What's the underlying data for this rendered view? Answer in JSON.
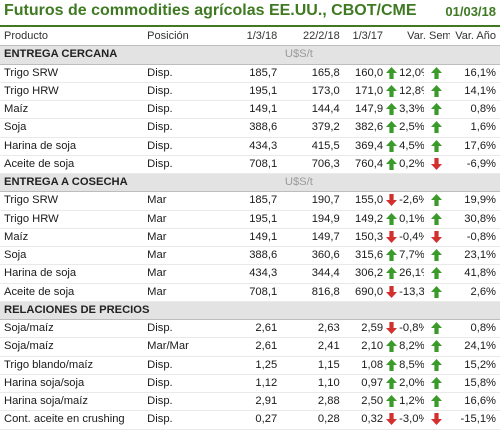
{
  "title": "Futuros de commodities agrícolas EE.UU., CBOT/CME",
  "date": "01/03/18",
  "columns": [
    "Producto",
    "Posición",
    "1/3/18",
    "22/2/18",
    "1/3/17",
    "Var. Sem.",
    "Var. Año"
  ],
  "colors": {
    "accent": "#3f7a23",
    "up": "#3a9a2a",
    "down": "#d32f2f",
    "section_bg": "#e3e3e3"
  },
  "sections": [
    {
      "name": "ENTREGA CERCANA",
      "unit": "U$S/t",
      "rows": [
        {
          "product": "Trigo SRW",
          "position": "Disp.",
          "v1": "185,7",
          "v2": "165,8",
          "v3": "160,0",
          "sem_dir": "up",
          "sem": "12,0%",
          "ano_dir": "up",
          "ano": "16,1%"
        },
        {
          "product": "Trigo HRW",
          "position": "Disp.",
          "v1": "195,1",
          "v2": "173,0",
          "v3": "171,0",
          "sem_dir": "up",
          "sem": "12,8%",
          "ano_dir": "up",
          "ano": "14,1%"
        },
        {
          "product": "Maíz",
          "position": "Disp.",
          "v1": "149,1",
          "v2": "144,4",
          "v3": "147,9",
          "sem_dir": "up",
          "sem": "3,3%",
          "ano_dir": "up",
          "ano": "0,8%"
        },
        {
          "product": "Soja",
          "position": "Disp.",
          "v1": "388,6",
          "v2": "379,2",
          "v3": "382,6",
          "sem_dir": "up",
          "sem": "2,5%",
          "ano_dir": "up",
          "ano": "1,6%"
        },
        {
          "product": "Harina de soja",
          "position": "Disp.",
          "v1": "434,3",
          "v2": "415,5",
          "v3": "369,4",
          "sem_dir": "up",
          "sem": "4,5%",
          "ano_dir": "up",
          "ano": "17,6%"
        },
        {
          "product": "Aceite de soja",
          "position": "Disp.",
          "v1": "708,1",
          "v2": "706,3",
          "v3": "760,4",
          "sem_dir": "up",
          "sem": "0,2%",
          "ano_dir": "down",
          "ano": "-6,9%"
        }
      ]
    },
    {
      "name": "ENTREGA A COSECHA",
      "unit": "U$S/t",
      "rows": [
        {
          "product": "Trigo SRW",
          "position": "Mar",
          "v1": "185,7",
          "v2": "190,7",
          "v3": "155,0",
          "sem_dir": "down",
          "sem": "-2,6%",
          "ano_dir": "up",
          "ano": "19,9%"
        },
        {
          "product": "Trigo HRW",
          "position": "Mar",
          "v1": "195,1",
          "v2": "194,9",
          "v3": "149,2",
          "sem_dir": "up",
          "sem": "0,1%",
          "ano_dir": "up",
          "ano": "30,8%"
        },
        {
          "product": "Maíz",
          "position": "Mar",
          "v1": "149,1",
          "v2": "149,7",
          "v3": "150,3",
          "sem_dir": "down",
          "sem": "-0,4%",
          "ano_dir": "down",
          "ano": "-0,8%"
        },
        {
          "product": "Soja",
          "position": "Mar",
          "v1": "388,6",
          "v2": "360,6",
          "v3": "315,6",
          "sem_dir": "up",
          "sem": "7,7%",
          "ano_dir": "up",
          "ano": "23,1%"
        },
        {
          "product": "Harina de soja",
          "position": "Mar",
          "v1": "434,3",
          "v2": "344,4",
          "v3": "306,2",
          "sem_dir": "up",
          "sem": "26,1%",
          "ano_dir": "up",
          "ano": "41,8%"
        },
        {
          "product": "Aceite de soja",
          "position": "Mar",
          "v1": "708,1",
          "v2": "816,8",
          "v3": "690,0",
          "sem_dir": "down",
          "sem": "-13,3%",
          "ano_dir": "up",
          "ano": "2,6%"
        }
      ]
    },
    {
      "name": "RELACIONES DE PRECIOS",
      "unit": "",
      "rows": [
        {
          "product": "Soja/maíz",
          "position": "Disp.",
          "v1": "2,61",
          "v2": "2,63",
          "v3": "2,59",
          "sem_dir": "down",
          "sem": "-0,8%",
          "ano_dir": "up",
          "ano": "0,8%"
        },
        {
          "product": "Soja/maíz",
          "position": "Mar/Mar",
          "v1": "2,61",
          "v2": "2,41",
          "v3": "2,10",
          "sem_dir": "up",
          "sem": "8,2%",
          "ano_dir": "up",
          "ano": "24,1%"
        },
        {
          "product": "Trigo blando/maíz",
          "position": "Disp.",
          "v1": "1,25",
          "v2": "1,15",
          "v3": "1,08",
          "sem_dir": "up",
          "sem": "8,5%",
          "ano_dir": "up",
          "ano": "15,2%"
        },
        {
          "product": "Harina soja/soja",
          "position": "Disp.",
          "v1": "1,12",
          "v2": "1,10",
          "v3": "0,97",
          "sem_dir": "up",
          "sem": "2,0%",
          "ano_dir": "up",
          "ano": "15,8%"
        },
        {
          "product": "Harina soja/maíz",
          "position": "Disp.",
          "v1": "2,91",
          "v2": "2,88",
          "v3": "2,50",
          "sem_dir": "up",
          "sem": "1,2%",
          "ano_dir": "up",
          "ano": "16,6%"
        },
        {
          "product": "Cont. aceite en crushing",
          "position": "Disp.",
          "v1": "0,27",
          "v2": "0,28",
          "v3": "0,32",
          "sem_dir": "down",
          "sem": "-3,0%",
          "ano_dir": "down",
          "ano": "-15,1%"
        }
      ]
    }
  ]
}
